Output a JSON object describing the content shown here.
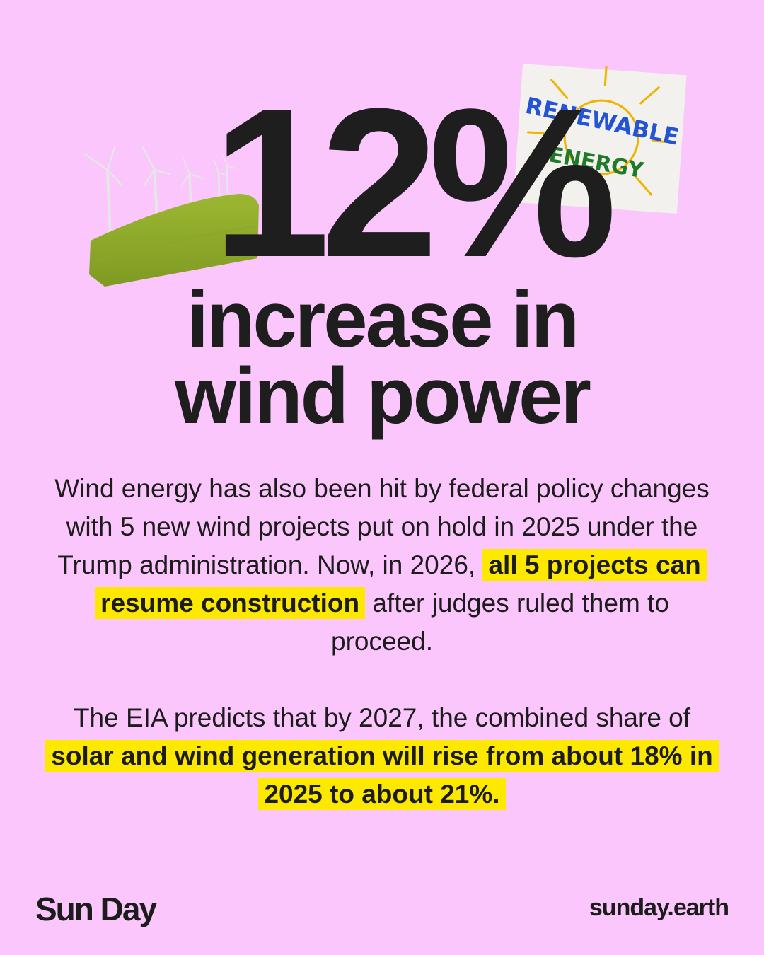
{
  "headline": {
    "stat": "12%",
    "line1": "increase in",
    "line2": "wind power"
  },
  "sign": {
    "line1": "RENEWABLE",
    "line2": "ENERGY"
  },
  "paragraph1": {
    "text_before": "Wind energy has also been hit by federal policy changes with 5 new wind projects put on hold in 2025 under the Trump administration. Now, in 2026, ",
    "highlight": "all 5 projects can resume construction",
    "text_after": " after judges ruled them to proceed."
  },
  "paragraph2": {
    "text_before": "The EIA predicts that by 2027, the combined share of ",
    "highlight": "solar and wind generation will rise from about 18% in 2025 to about 21%."
  },
  "footer": {
    "brand": "Sun Day",
    "website": "sunday.earth"
  },
  "colors": {
    "background": "#fbc6fb",
    "highlight": "#fde800",
    "text": "#1c1c1c"
  }
}
